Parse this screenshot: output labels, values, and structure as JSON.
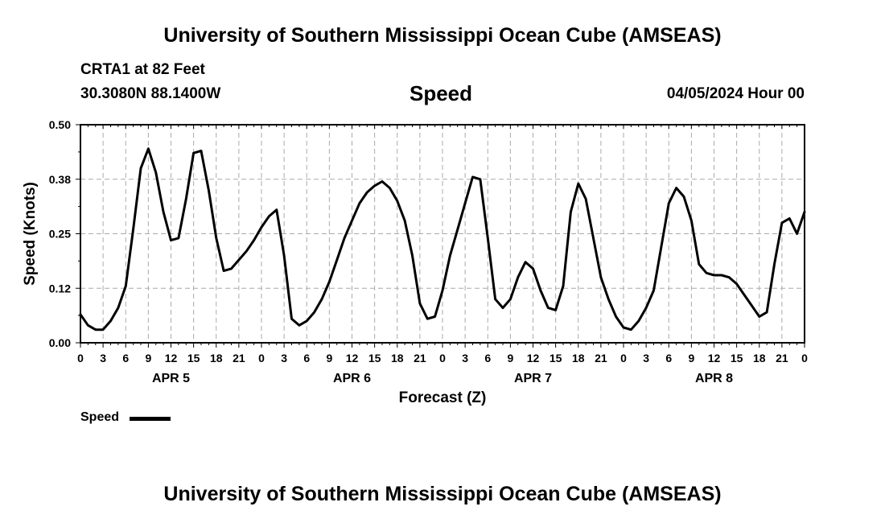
{
  "header": {
    "title": "University of Southern Mississippi Ocean Cube (AMSEAS)",
    "station": "CRTA1 at 82 Feet",
    "coordinates": "30.3080N  88.1400W",
    "variable": "Speed",
    "datetime": "04/05/2024 Hour 00"
  },
  "footer": {
    "title": "University of Southern Mississippi Ocean Cube (AMSEAS)"
  },
  "legend": {
    "label": "Speed",
    "color": "#000000"
  },
  "chart_data": {
    "type": "line",
    "title": "Speed",
    "xlabel": "Forecast (Z)",
    "ylabel": "Speed (Knots)",
    "ylim": [
      0,
      0.5
    ],
    "xlim": [
      0,
      96
    ],
    "yticks": [
      0.0,
      0.125,
      0.25,
      0.375,
      0.5
    ],
    "ytick_labels": [
      "0.00",
      "0.12",
      "0.25",
      "0.38",
      "0.50"
    ],
    "xtick_hours": [
      0,
      3,
      6,
      9,
      12,
      15,
      18,
      21,
      24,
      27,
      30,
      33,
      36,
      39,
      42,
      45,
      48,
      51,
      54,
      57,
      60,
      63,
      66,
      69,
      72,
      75,
      78,
      81,
      84,
      87,
      90,
      93,
      96
    ],
    "xtick_labels": [
      "0",
      "3",
      "6",
      "9",
      "12",
      "15",
      "18",
      "21",
      "0",
      "3",
      "6",
      "9",
      "12",
      "15",
      "18",
      "21",
      "0",
      "3",
      "6",
      "9",
      "12",
      "15",
      "18",
      "21",
      "0",
      "3",
      "6",
      "9",
      "12",
      "15",
      "18",
      "21",
      "0"
    ],
    "day_labels": [
      {
        "hour": 12,
        "label": "APR 5"
      },
      {
        "hour": 36,
        "label": "APR 6"
      },
      {
        "hour": 60,
        "label": "APR 7"
      },
      {
        "hour": 84,
        "label": "APR 8"
      }
    ],
    "grid": true,
    "series": [
      {
        "name": "Speed",
        "color": "#000000",
        "x": [
          0,
          1,
          2,
          3,
          4,
          5,
          6,
          7,
          8,
          9,
          10,
          11,
          12,
          13,
          14,
          15,
          16,
          17,
          18,
          19,
          20,
          21,
          22,
          23,
          24,
          25,
          26,
          27,
          28,
          29,
          30,
          31,
          32,
          33,
          34,
          35,
          36,
          37,
          38,
          39,
          40,
          41,
          42,
          43,
          44,
          45,
          46,
          47,
          48,
          49,
          50,
          51,
          52,
          53,
          54,
          55,
          56,
          57,
          58,
          59,
          60,
          61,
          62,
          63,
          64,
          65,
          66,
          67,
          68,
          69,
          70,
          71,
          72,
          73,
          74,
          75,
          76,
          77,
          78,
          79,
          80,
          81,
          82,
          83,
          84,
          85,
          86,
          87,
          88,
          89,
          90,
          91,
          92,
          93,
          94,
          95,
          96
        ],
        "values": [
          0.065,
          0.04,
          0.03,
          0.03,
          0.05,
          0.08,
          0.13,
          0.26,
          0.4,
          0.445,
          0.39,
          0.3,
          0.235,
          0.24,
          0.33,
          0.435,
          0.44,
          0.35,
          0.24,
          0.165,
          0.17,
          0.19,
          0.21,
          0.235,
          0.265,
          0.29,
          0.305,
          0.2,
          0.055,
          0.04,
          0.05,
          0.07,
          0.1,
          0.14,
          0.19,
          0.24,
          0.28,
          0.32,
          0.345,
          0.36,
          0.37,
          0.355,
          0.325,
          0.28,
          0.2,
          0.09,
          0.055,
          0.06,
          0.12,
          0.2,
          0.26,
          0.32,
          0.38,
          0.375,
          0.24,
          0.1,
          0.08,
          0.1,
          0.15,
          0.185,
          0.17,
          0.12,
          0.08,
          0.075,
          0.13,
          0.3,
          0.365,
          0.33,
          0.24,
          0.15,
          0.1,
          0.06,
          0.035,
          0.03,
          0.05,
          0.08,
          0.12,
          0.22,
          0.32,
          0.355,
          0.335,
          0.28,
          0.18,
          0.16,
          0.155,
          0.155,
          0.15,
          0.135,
          0.11,
          0.085,
          0.06,
          0.07,
          0.18,
          0.275,
          0.285,
          0.25,
          0.3
        ]
      }
    ]
  }
}
